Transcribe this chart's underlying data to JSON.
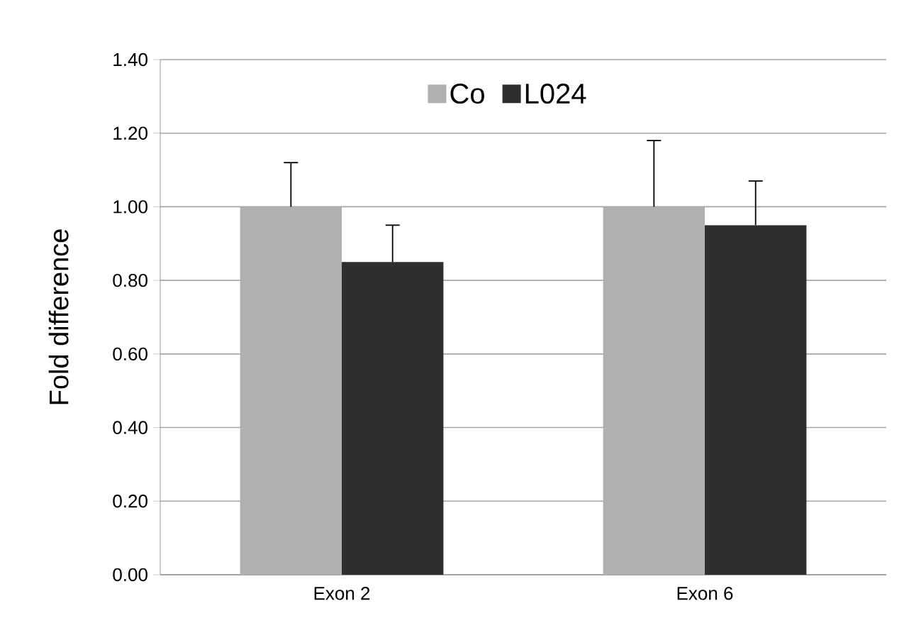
{
  "chart_data": {
    "type": "bar",
    "ylabel": "Fold difference",
    "categories": [
      "Exon 2",
      "Exon 6"
    ],
    "series": [
      {
        "name": "Co",
        "color": "#b0b0b0",
        "values": [
          1.0,
          1.0
        ],
        "errors": [
          [
            1.0,
            1.12
          ],
          [
            1.0,
            1.18
          ]
        ]
      },
      {
        "name": "L024",
        "color": "#2e2e2e",
        "values": [
          0.85,
          0.95
        ],
        "errors": [
          [
            0.85,
            0.95
          ],
          [
            0.95,
            1.07
          ]
        ]
      }
    ],
    "ylim": [
      0,
      1.4
    ],
    "yticks": [
      {
        "value": 0,
        "label": "0.00"
      },
      {
        "value": 0.2,
        "label": "0.20"
      },
      {
        "value": 0.4,
        "label": "0.40"
      },
      {
        "value": 0.6,
        "label": "0.60"
      },
      {
        "value": 0.8,
        "label": "0.80"
      },
      {
        "value": 1.0,
        "label": "1.00"
      },
      {
        "value": 1.2,
        "label": "1.20"
      },
      {
        "value": 1.4,
        "label": "1.40"
      }
    ],
    "grid": "y",
    "legend": "top"
  }
}
